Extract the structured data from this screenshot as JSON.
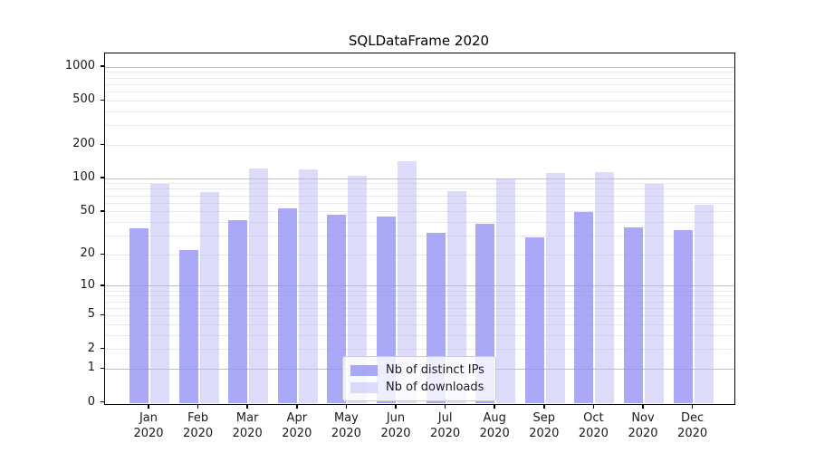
{
  "figure": {
    "background": "#ffffff"
  },
  "chart_data": {
    "type": "bar",
    "title": "SQLDataFrame 2020",
    "categories": [
      "Jan 2020",
      "Feb 2020",
      "Mar 2020",
      "Apr 2020",
      "May 2020",
      "Jun 2020",
      "Jul 2020",
      "Aug 2020",
      "Sep 2020",
      "Oct 2020",
      "Nov 2020",
      "Dec 2020"
    ],
    "series": [
      {
        "name": "Nb of distinct IPs",
        "color": "rgba(140,140,246,0.75)",
        "solid_color": "#aaaaf8",
        "values": [
          35,
          22,
          42,
          54,
          47,
          45,
          32,
          39,
          29,
          50,
          36,
          34
        ]
      },
      {
        "name": "Nb of downloads",
        "color": "rgba(185,185,245,0.5)",
        "solid_color": "#dcdcfa",
        "values": [
          90,
          76,
          124,
          122,
          106,
          144,
          77,
          100,
          112,
          114,
          90,
          58
        ]
      }
    ],
    "xlabel": "",
    "ylabel": "",
    "yscale": "log1p",
    "yticks": [
      1000,
      500,
      200,
      100,
      50,
      20,
      10,
      5,
      2,
      1,
      0
    ],
    "major_grid_values": [
      1,
      10,
      100,
      1000
    ],
    "ylim": [
      0,
      1330
    ],
    "grid": true,
    "legend_position": "lower center",
    "colors": {
      "major_grid": "#bfbfbf",
      "minor_grid": "#e9e9e9",
      "spine": "#000000",
      "text": "#1a1a1a"
    }
  }
}
